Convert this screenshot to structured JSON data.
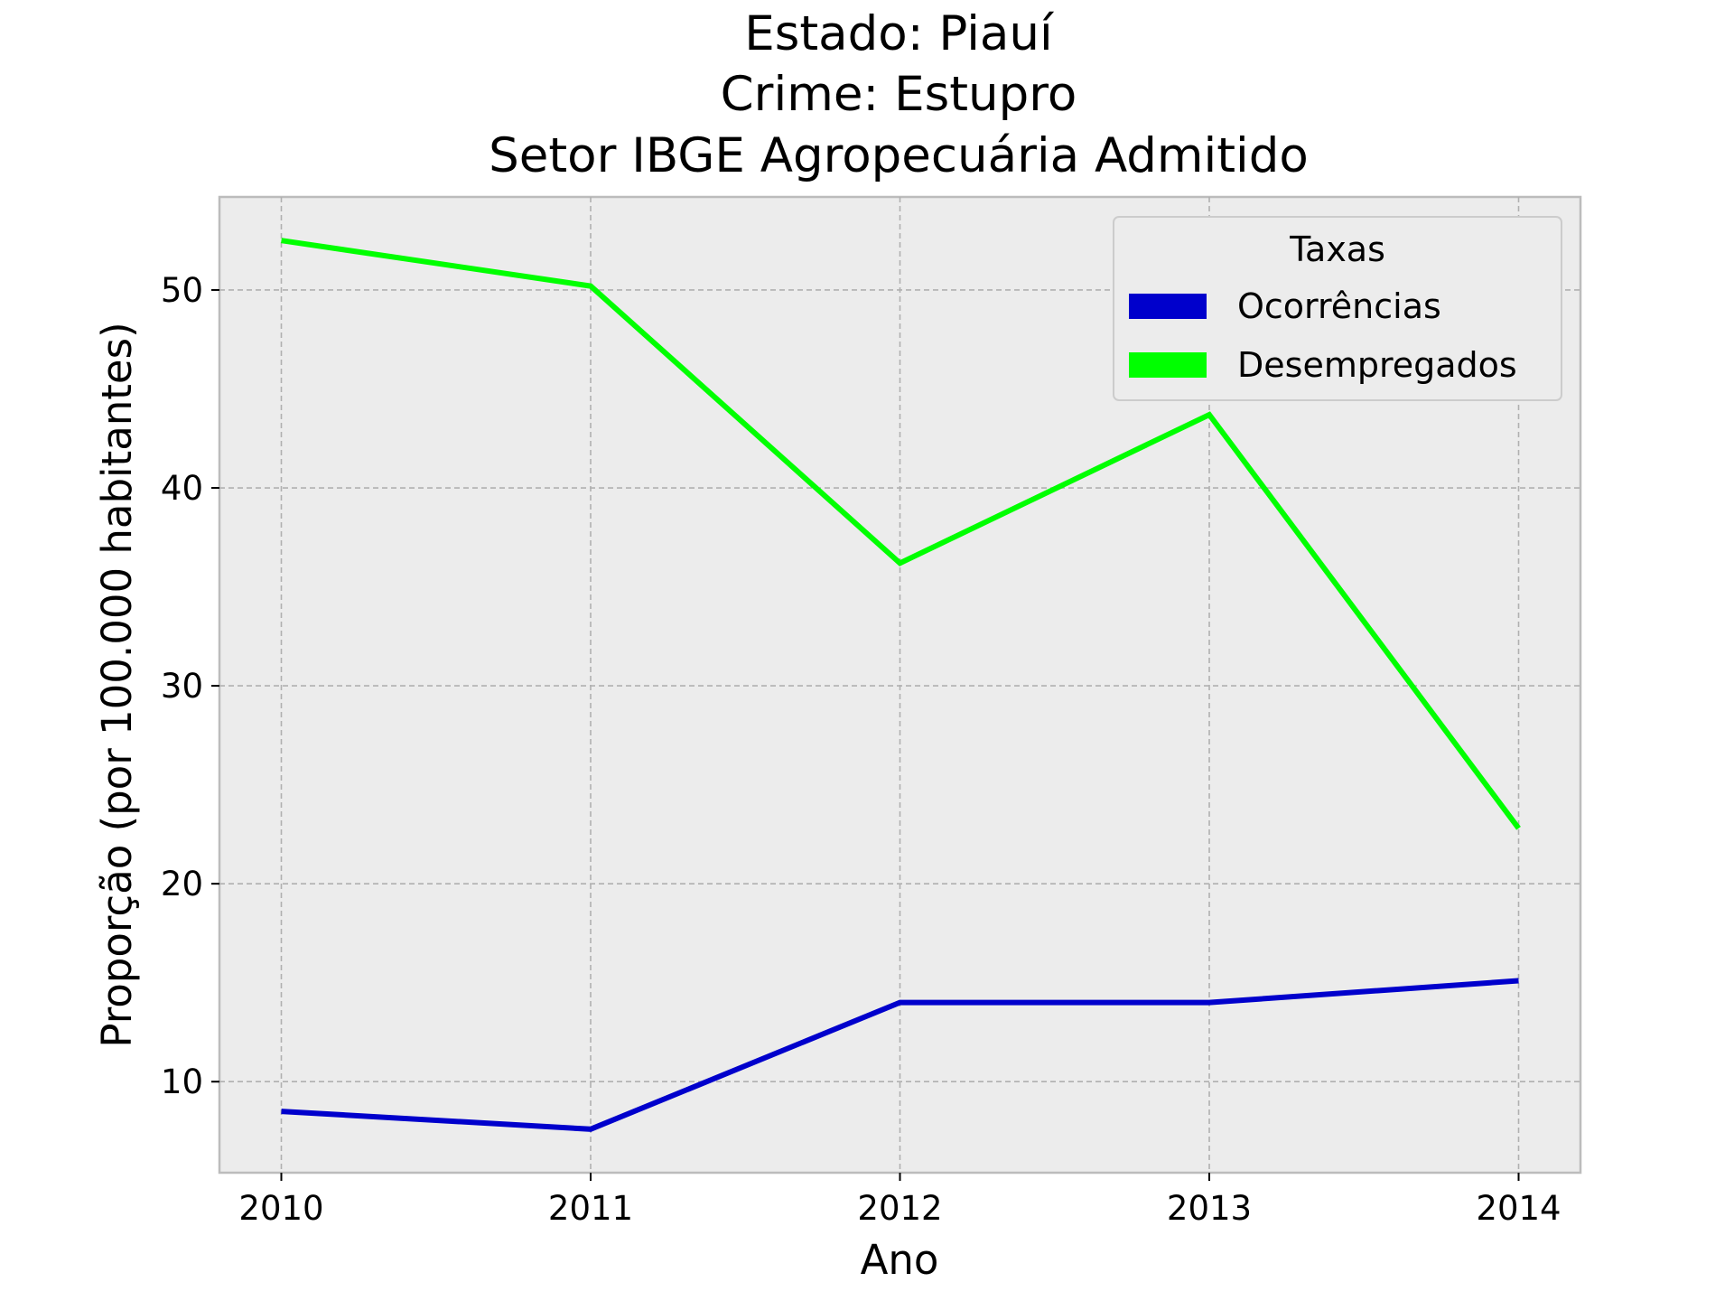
{
  "chart_data": {
    "type": "line",
    "title_lines": [
      "Estado: Piauí",
      "Crime: Estupro",
      "Setor IBGE  Agropecuária   Admitido"
    ],
    "xlabel": "Ano",
    "ylabel": "Proporção (por 100.000 habitantes)",
    "x": [
      2010,
      2011,
      2012,
      2013,
      2014
    ],
    "x_tick_labels": [
      "2010",
      "2011",
      "2012",
      "2013",
      "2014"
    ],
    "y_ticks": [
      10,
      20,
      30,
      40,
      50
    ],
    "y_tick_labels": [
      "10",
      "20",
      "30",
      "40",
      "50"
    ],
    "xlim": [
      2009.8,
      2014.2
    ],
    "ylim": [
      5.4,
      54.7
    ],
    "grid": true,
    "legend": {
      "title": "Taxas",
      "placement": "top-right"
    },
    "series": [
      {
        "name": "Ocorrências",
        "color": "#0000cc",
        "values": [
          8.5,
          7.6,
          14.0,
          14.0,
          15.1
        ]
      },
      {
        "name": "Desempregados",
        "color": "#00ff00",
        "values": [
          52.5,
          50.2,
          36.2,
          43.7,
          22.8
        ]
      }
    ]
  }
}
